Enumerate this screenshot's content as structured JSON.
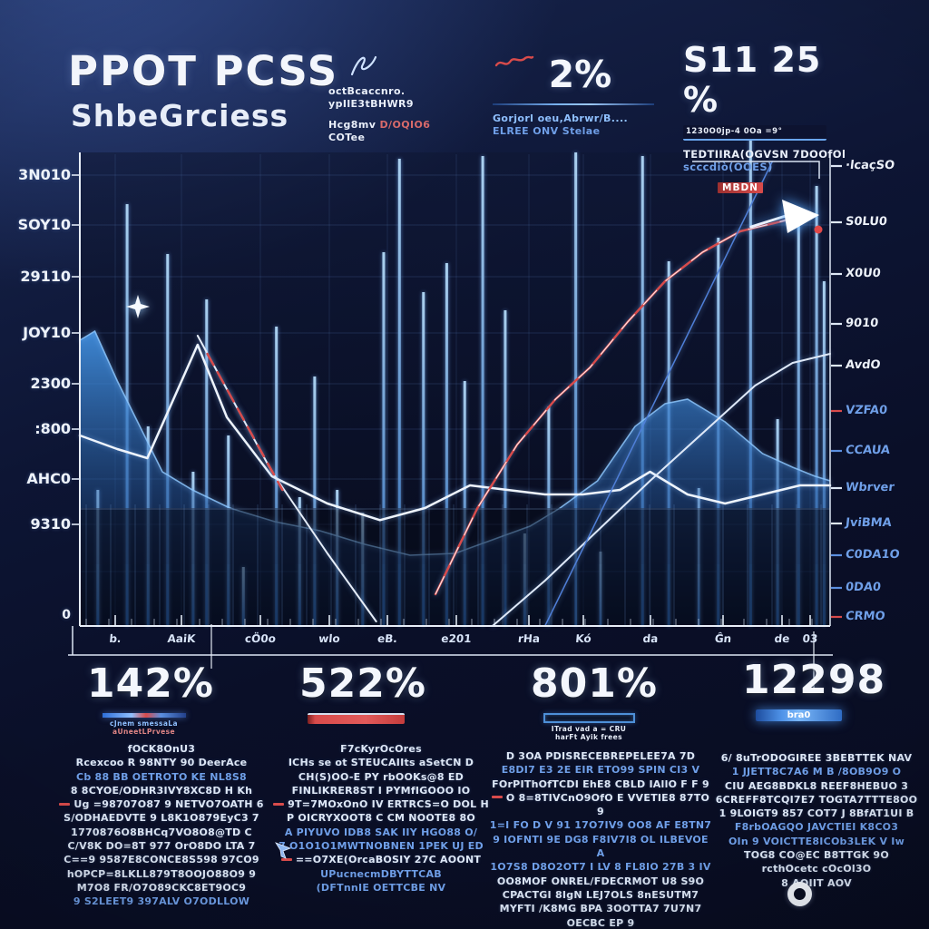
{
  "palette": {
    "bg": "#0d1534",
    "accent_blue": "#4f93e8",
    "accent_light": "#8fc0ff",
    "accent_red": "#d84b4b",
    "text_white": "#e9effa",
    "text_blue": "#6f9fe8"
  },
  "icons": {
    "header_pen": "pen-scribble-icon",
    "trend_scribble": "red-scribble-icon",
    "chart_arrow": "trend-arrow-icon",
    "sparkle": "sparkle-icon",
    "cursor": "cursor-arrow-icon",
    "ring": "record-ring-icon"
  },
  "header": {
    "title": "PPOT PCSS",
    "subtitle": "ShbeGrciess",
    "block2": {
      "lines": [
        "octBcaccnro.",
        "ypIlE3tBHWR9"
      ],
      "sub1a": "Hcg8mv ",
      "sub1b": "D/OQIO6",
      "sub2": "COTee"
    },
    "block3": {
      "value": "2%",
      "line1": "Gorjorl oeu,Abrwr/B....",
      "line2": "ELREE ONV Stelae"
    },
    "block4": {
      "value": "S11 25 %",
      "bar_text": "1230O0jp-4 0Oa =9°",
      "line1": "TEDTIIRA(OGVSN 7DOOfOl",
      "line2": "scccdiò(OOES)",
      "tag": "MBDN"
    }
  },
  "stats": [
    {
      "value": "142%",
      "caption1": "cJnem smessaLa",
      "caption2": "aUneetLPrvese",
      "bar": "mixed"
    },
    {
      "value": "522%",
      "bar": "red"
    },
    {
      "value": "801%",
      "caption1": "ITrad vad a = CRU",
      "caption2": "harFt Ayik frees",
      "bar": "outline"
    },
    {
      "value": "12298",
      "bar": "glow",
      "bar_label": "bra0"
    }
  ],
  "columns": [
    {
      "lines": [
        {
          "t": "fOCK8OnU3",
          "c": "w"
        },
        {
          "t": "Rcexcoo R 98NTY 90 DeerAce",
          "c": "w"
        },
        {
          "t": "Cb 88 BB OETROTO KE NL8S8",
          "c": "b"
        },
        {
          "t": "8 8CYOE/ODHR3IVY8XC8D H Kh",
          "c": "w"
        },
        {
          "t": "Ug =98707O87 9 NETVO7OATH 6",
          "c": "w",
          "r": true
        },
        {
          "t": "S/ODHAEDVTE 9 L8K1O879EyC3 7",
          "c": "w"
        },
        {
          "t": "1770876O8BHCq7VO8O8@TD C",
          "c": "w"
        },
        {
          "t": "C/V8K DO=8T 977 OrO8DO LTA 7",
          "c": "w"
        },
        {
          "t": "C==9 9587E8CONCE8S598 97CO9",
          "c": "w"
        },
        {
          "t": "hOPCP=8LKLL879T8OOJO88O9 9",
          "c": "w"
        },
        {
          "t": "M7O8 FR/O7O89CKC8ET9OC9",
          "c": "w"
        },
        {
          "t": "9 S2LEET9 397ALV O7ODLLOW",
          "c": "b"
        }
      ]
    },
    {
      "lines": [
        {
          "t": "F7cKyrOcOres",
          "c": "w"
        },
        {
          "t": "ICHs se ot STEUCAIIts aSetCN D",
          "c": "w"
        },
        {
          "t": "CH(S)OO-E PY rbOOKs@8 ED",
          "c": "w"
        },
        {
          "t": "FINLIKRER8ST I PYMfIGOOO IO",
          "c": "w"
        },
        {
          "t": "9T=7MOxOnO IV ERTRCS=O DOL H",
          "c": "w",
          "r": true
        },
        {
          "t": "P OICRYXOOT8 C CM NOOTE8 8O",
          "c": "w"
        },
        {
          "t": "A PIYUVO IDB8 SAK IIY HGO88 O/",
          "c": "b"
        },
        {
          "t": "7 O1O1O1MWTNOBNEN 1PEK UJ ED",
          "c": "b"
        },
        {
          "t": "==O7XE(OrcaBOSIY 27C AOONT",
          "c": "w",
          "r": true
        },
        {
          "t": "UPucnecmDBYTTCAB",
          "c": "b"
        },
        {
          "t": "(DFTnnIE OETTCBE NV",
          "c": "b"
        }
      ]
    },
    {
      "lines": [
        {
          "t": "D 3OA PDISRECEBREPELEE7A 7D",
          "c": "w"
        },
        {
          "t": "E8DI7 E3 2E EIR ETO99 SPIN CI3 V",
          "c": "b"
        },
        {
          "t": "FOrPIThOfTCDI EhE8 CBLD IAllO F F 9",
          "c": "w"
        },
        {
          "t": "O 8=8TIVCnO9OfO E VVETIE8 87TO 9",
          "c": "w",
          "r": true
        },
        {
          "t": "1=I FO D V 91 17O7IV9 OO8 AF E8TN7",
          "c": "b"
        },
        {
          "t": "9 IOFNTI 9E DG8 F8IV7I8 OL ILBEVOE A",
          "c": "b"
        },
        {
          "t": "1O7S8 D8O2OT7 I LV 8 FL8IO 27B 3 IV",
          "c": "b"
        },
        {
          "t": "OO8MOF ONREL/FDECRMOT U8 S9O",
          "c": "w"
        },
        {
          "t": "CPACTGI 8IgN LEJ7OLS 8nESUTM7",
          "c": "w"
        },
        {
          "t": "MYFTI /K8MG BPA 3OOTTA7 7U7N7",
          "c": "w"
        },
        {
          "t": "OECBC EP 9",
          "c": "w"
        }
      ]
    },
    {
      "lines": [
        {
          "t": "6/ 8uTrODOGIREE 3BEBTTEK NAV",
          "c": "w"
        },
        {
          "t": "1 JJETT8C7A6 M B /8OB9O9 O",
          "c": "b"
        },
        {
          "t": "CIU AEG8BDKL8 REEF8HEBUO 3",
          "c": "w"
        },
        {
          "t": "6CREFF8TCQI7E7 TOGTA7TTTE8OO",
          "c": "w"
        },
        {
          "t": "1 9LOIGT9 857 COT7 J 8BfAT1UI B",
          "c": "w"
        },
        {
          "t": "F8rbOAGQO JAVCTIEI K8CO3",
          "c": "b"
        },
        {
          "t": "OIn 9 VOICTTE8ICOb3LEK V Iw",
          "c": "b"
        },
        {
          "t": "TOG8 CO@EC B8TTGK 9O",
          "c": "w"
        },
        {
          "t": "rcthOcetc cOcOl3O",
          "c": "w"
        },
        {
          "t": "8 AOIIT AOV",
          "c": "w"
        }
      ]
    }
  ],
  "chart_data": {
    "type": "composite",
    "title": "PPOT PCSS ShbeGrciess price chart",
    "ylim": [
      0,
      3300
    ],
    "grid": true,
    "x_tick_labels": [
      "b.",
      "AaiK",
      "cÖ0o",
      "wlo",
      "eB.",
      "e201",
      "rHa",
      "Kó",
      "da",
      "Ĝn",
      "de",
      "03"
    ],
    "y_left_labels": [
      "3N010",
      "SOY10",
      "29110",
      "JOY10",
      "2300",
      ":800",
      "AHC0",
      "9310"
    ],
    "y_left_zero": "0",
    "y_right_labels": [
      {
        "t": "·lcaçSO",
        "tone": "w",
        "tick": "w"
      },
      {
        "t": "S0LU0",
        "tone": "w",
        "tick": "w"
      },
      {
        "t": "X0U0",
        "tone": "w",
        "tick": "w"
      },
      {
        "t": "9010",
        "tone": "w",
        "tick": "w"
      },
      {
        "t": "AvdO",
        "tone": "w",
        "tick": "w"
      },
      {
        "t": "VZFA0",
        "tone": "b",
        "tick": "r"
      },
      {
        "t": "CCAUA",
        "tone": "b",
        "tick": "b"
      },
      {
        "t": "Wbrver",
        "tone": "b",
        "tick": "w"
      },
      {
        "t": "JviBMA",
        "tone": "b",
        "tick": "w"
      },
      {
        "t": "C0DA1O",
        "tone": "b",
        "tick": "b"
      },
      {
        "t": "0DA0",
        "tone": "b",
        "tick": "b"
      },
      {
        "t": "CRMO",
        "tone": "b",
        "tick": "r"
      }
    ],
    "series": [
      {
        "type": "bar",
        "name": "volume bars",
        "color": "#6ab0f2",
        "points": [
          [
            2.4,
            900
          ],
          [
            6.3,
            2790
          ],
          [
            9.1,
            1320
          ],
          [
            11.7,
            2460
          ],
          [
            15.1,
            1020
          ],
          [
            16.9,
            2160
          ],
          [
            19.8,
            1260
          ],
          [
            21.8,
            390
          ],
          [
            26.2,
            1980
          ],
          [
            29.3,
            852
          ],
          [
            31.3,
            1650
          ],
          [
            34.3,
            900
          ],
          [
            37.7,
            750
          ],
          [
            40.5,
            2472
          ],
          [
            42.6,
            3090
          ],
          [
            45.8,
            2208
          ],
          [
            48.9,
            2400
          ],
          [
            51.3,
            1620
          ],
          [
            53.7,
            3108
          ],
          [
            56.7,
            2088
          ],
          [
            59.3,
            612
          ],
          [
            62.5,
            1452
          ],
          [
            66.1,
            3132
          ],
          [
            69.4,
            492
          ],
          [
            75,
            3108
          ],
          [
            78.5,
            2412
          ],
          [
            82.5,
            912
          ],
          [
            85.1,
            2568
          ],
          [
            89.4,
            3300
          ],
          [
            93,
            1368
          ],
          [
            95.8,
            2712
          ],
          [
            98.2,
            2910
          ],
          [
            99.2,
            2280
          ]
        ]
      },
      {
        "type": "area",
        "name": "blue area band",
        "color": "#3b8ce8",
        "points": [
          [
            0,
            1890
          ],
          [
            2,
            1950
          ],
          [
            5,
            1620
          ],
          [
            8,
            1320
          ],
          [
            11,
            1020
          ],
          [
            15,
            900
          ],
          [
            20,
            780
          ],
          [
            26,
            690
          ],
          [
            32,
            630
          ],
          [
            38,
            540
          ],
          [
            44,
            468
          ],
          [
            50,
            480
          ],
          [
            55,
            570
          ],
          [
            60,
            660
          ],
          [
            64,
            780
          ],
          [
            69,
            960
          ],
          [
            74,
            1320
          ],
          [
            78,
            1470
          ],
          [
            81,
            1500
          ],
          [
            86,
            1350
          ],
          [
            91,
            1140
          ],
          [
            95,
            1050
          ],
          [
            98,
            990
          ],
          [
            100,
            960
          ]
        ]
      },
      {
        "type": "line",
        "name": "white wavy midline",
        "color": "#eef4fc",
        "width": 2.5,
        "points": [
          [
            0,
            1260
          ],
          [
            5,
            1170
          ],
          [
            9,
            1110
          ],
          [
            15.7,
            1860
          ],
          [
            19.6,
            1380
          ],
          [
            25.6,
            990
          ],
          [
            33,
            810
          ],
          [
            40,
            700
          ],
          [
            46,
            780
          ],
          [
            52,
            930
          ],
          [
            57,
            900
          ],
          [
            62,
            870
          ],
          [
            67,
            870
          ],
          [
            72,
            900
          ],
          [
            76,
            1020
          ],
          [
            81,
            870
          ],
          [
            86,
            810
          ],
          [
            91,
            870
          ],
          [
            96,
            930
          ],
          [
            100,
            930
          ]
        ]
      },
      {
        "type": "line",
        "name": "white descending diagonal",
        "color": "#e6edf8",
        "width": 2,
        "points": [
          [
            15.7,
            1920
          ],
          [
            25.6,
            1020
          ],
          [
            33,
            480
          ],
          [
            39.5,
            30
          ]
        ]
      },
      {
        "type": "line",
        "name": "red descending overlay",
        "color": "#d84b4b",
        "width": 2.5,
        "dashed": true,
        "points": [
          [
            17,
            1800
          ],
          [
            27,
            900
          ]
        ]
      },
      {
        "type": "line",
        "name": "red rising trend",
        "color": "#d84b4b",
        "width": 2.5,
        "arrow_end": true,
        "points": [
          [
            47.4,
            210
          ],
          [
            53,
            780
          ],
          [
            58.3,
            1200
          ],
          [
            63.4,
            1500
          ],
          [
            68,
            1710
          ],
          [
            73,
            2010
          ],
          [
            78,
            2280
          ],
          [
            83,
            2472
          ],
          [
            88,
            2610
          ],
          [
            95.5,
            2700
          ]
        ]
      },
      {
        "type": "line",
        "name": "white rising support",
        "color": "#dfe9f8",
        "width": 2,
        "points": [
          [
            55,
            0
          ],
          [
            62,
            300
          ],
          [
            69,
            630
          ],
          [
            76,
            960
          ],
          [
            84,
            1320
          ],
          [
            90,
            1590
          ],
          [
            95,
            1740
          ],
          [
            100,
            1800
          ]
        ]
      },
      {
        "type": "line",
        "name": "blue straight diagonal",
        "color": "#4f7fd8",
        "width": 1.5,
        "points": [
          [
            62,
            0
          ],
          [
            92.3,
            3072
          ]
        ]
      }
    ]
  }
}
